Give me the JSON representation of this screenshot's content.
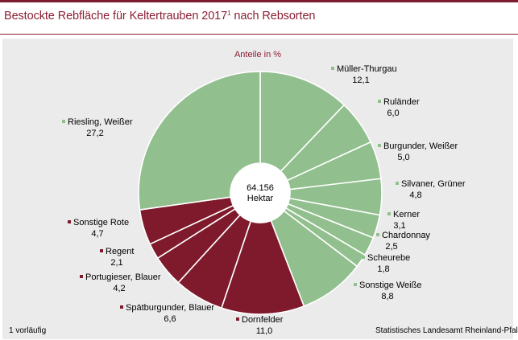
{
  "title": {
    "text": "Bestockte Rebfläche für Keltertrauben 2017",
    "superscript": "1",
    "suffix": " nach Rebsorten"
  },
  "footnote": "1 vorläufig",
  "source": "Statistisches Landesamt Rheinland-Pfalz",
  "colors": {
    "white_varieties": "#92bf8e",
    "red_varieties": "#7f1a2c",
    "title": "#8a1f33",
    "plot_background": "#ebebeb"
  },
  "chart_data": {
    "type": "pie",
    "subtitle": "Anteile in %",
    "center_label": [
      "64.156",
      "Hektar"
    ],
    "slices": [
      {
        "label": "Müller-Thurgau",
        "value": 12.1,
        "value_label": "12,1",
        "group": "white"
      },
      {
        "label": "Ruländer",
        "value": 6.0,
        "value_label": "6,0",
        "group": "white"
      },
      {
        "label": "Burgunder, Weißer",
        "value": 5.0,
        "value_label": "5,0",
        "group": "white"
      },
      {
        "label": "Silvaner, Grüner",
        "value": 4.8,
        "value_label": "4,8",
        "group": "white"
      },
      {
        "label": "Kerner",
        "value": 3.1,
        "value_label": "3,1",
        "group": "white"
      },
      {
        "label": "Chardonnay",
        "value": 2.5,
        "value_label": "2,5",
        "group": "white"
      },
      {
        "label": "Scheurebe",
        "value": 1.8,
        "value_label": "1,8",
        "group": "white"
      },
      {
        "label": "Sonstige Weiße",
        "value": 8.8,
        "value_label": "8,8",
        "group": "white"
      },
      {
        "label": "Dornfelder",
        "value": 11.0,
        "value_label": "11,0",
        "group": "red"
      },
      {
        "label": "Spätburgunder, Blauer",
        "value": 6.6,
        "value_label": "6,6",
        "group": "red"
      },
      {
        "label": "Portugieser, Blauer",
        "value": 4.2,
        "value_label": "4,2",
        "group": "red"
      },
      {
        "label": "Regent",
        "value": 2.1,
        "value_label": "2,1",
        "group": "red"
      },
      {
        "label": "Sonstige Rote",
        "value": 4.7,
        "value_label": "4,7",
        "group": "red"
      },
      {
        "label": "Riesling, Weißer",
        "value": 27.2,
        "value_label": "27,2",
        "group": "white"
      }
    ]
  }
}
